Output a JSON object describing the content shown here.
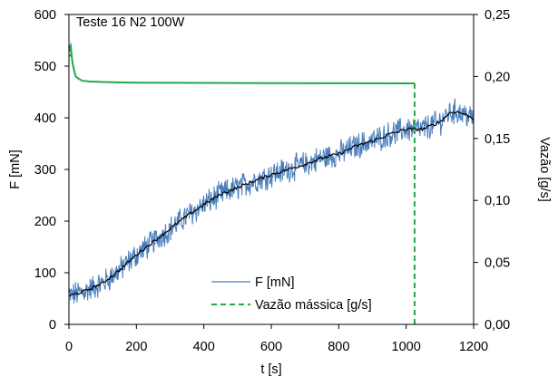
{
  "chart_data": {
    "type": "line",
    "annotation": "Teste 16 N2 100W",
    "xlabel": "t [s]",
    "ylabel_left": "F [mN]",
    "ylabel_right": "Vazão [g/s]",
    "xlim": [
      0,
      1200
    ],
    "ylim_left": [
      0,
      600
    ],
    "ylim_right": [
      0,
      0.25
    ],
    "x_ticks": [
      "0",
      "200",
      "400",
      "600",
      "800",
      "1000",
      "1200"
    ],
    "y_left_ticks": [
      "0",
      "100",
      "200",
      "300",
      "400",
      "500",
      "600"
    ],
    "y_right_ticks": [
      "0,00",
      "0,05",
      "0,10",
      "0,15",
      "0,20",
      "0,25"
    ],
    "grid": false,
    "legend_position": "bottom-center",
    "series": [
      {
        "name": "F [mN]",
        "axis": "left",
        "style": "solid",
        "color": "#4a7ebb",
        "noise_amplitude": 22,
        "x": [
          0,
          50,
          100,
          150,
          200,
          250,
          300,
          350,
          400,
          450,
          500,
          550,
          600,
          650,
          700,
          750,
          800,
          850,
          900,
          950,
          1000,
          1050,
          1100,
          1130,
          1150,
          1180,
          1200
        ],
        "y": [
          55,
          65,
          80,
          105,
          135,
          160,
          185,
          210,
          232,
          252,
          265,
          278,
          290,
          300,
          310,
          322,
          330,
          345,
          355,
          368,
          378,
          378,
          392,
          410,
          412,
          405,
          398
        ]
      },
      {
        "name": "",
        "axis": "left",
        "style": "solid",
        "color": "#000000",
        "x": [
          0,
          50,
          100,
          150,
          200,
          250,
          300,
          350,
          400,
          450,
          500,
          550,
          600,
          650,
          700,
          750,
          800,
          850,
          900,
          950,
          1000,
          1050,
          1100,
          1130,
          1150,
          1180,
          1200
        ],
        "y": [
          55,
          65,
          80,
          105,
          135,
          160,
          185,
          210,
          232,
          252,
          265,
          278,
          290,
          300,
          310,
          322,
          330,
          345,
          355,
          368,
          378,
          378,
          392,
          410,
          412,
          405,
          398
        ]
      },
      {
        "name": "Vazão mássica [g/s]",
        "axis": "right",
        "style": "dashed",
        "color": "#22aa4a",
        "x": [
          0,
          5,
          10,
          15,
          20,
          30,
          40,
          60,
          100,
          200,
          400,
          600,
          800,
          1000,
          1025,
          1025
        ],
        "y": [
          0.222,
          0.225,
          0.212,
          0.205,
          0.2,
          0.198,
          0.1965,
          0.196,
          0.1955,
          0.195,
          0.1948,
          0.1946,
          0.1945,
          0.1944,
          0.1944,
          0.0
        ]
      }
    ]
  }
}
